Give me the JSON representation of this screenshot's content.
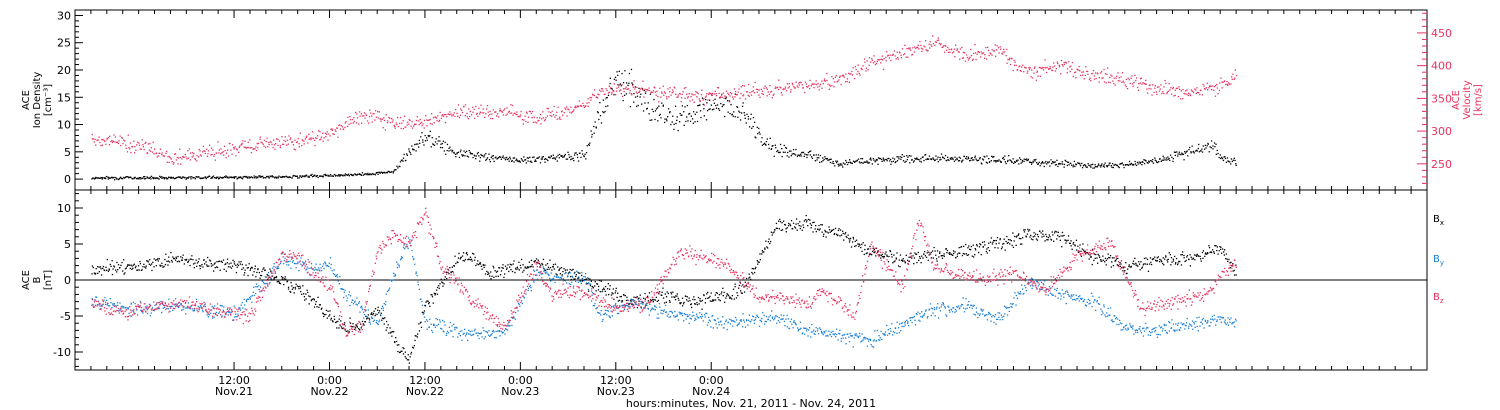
{
  "colors": {
    "density": "#000000",
    "velocity": "#e8325f",
    "bx": "#000000",
    "by": "#1a7fd6",
    "bz": "#e8325f",
    "axis": "#000000"
  },
  "chart_data": [
    {
      "type": "scatter",
      "panel": "top",
      "ylabel_lines": [
        "ACE",
        "Ion Density",
        "[cm⁻³]"
      ],
      "ylim": [
        -2,
        31
      ],
      "yticks": [
        0,
        5,
        10,
        15,
        20,
        25,
        30
      ],
      "y2label_lines": [
        "ACE",
        "Velocity",
        "[km/s]"
      ],
      "y2lim": [
        210,
        485
      ],
      "y2ticks": [
        250,
        300,
        350,
        400,
        450
      ],
      "series": [
        {
          "axis": "left",
          "color_key": "density",
          "x": [
            -6,
            6,
            18,
            24,
            28,
            30,
            32,
            34,
            36,
            40,
            44,
            48,
            52,
            56,
            57,
            58,
            60,
            62,
            63,
            64,
            66,
            68,
            70,
            72,
            74,
            76,
            78,
            80,
            84,
            88,
            92,
            96,
            100,
            104,
            108,
            110,
            112,
            116,
            120,
            124,
            128,
            132,
            135,
            136,
            138
          ],
          "y": [
            0.3,
            0.4,
            0.5,
            0.8,
            1.0,
            1.2,
            1.5,
            5.0,
            8.0,
            5.0,
            4.0,
            3.5,
            4.0,
            4.5,
            8.0,
            13.0,
            18.0,
            16.0,
            15.0,
            14.0,
            12.0,
            11.0,
            12.0,
            14.0,
            13.0,
            12.0,
            8.0,
            5.5,
            4.5,
            3.0,
            3.5,
            3.8,
            4.0,
            3.8,
            3.6,
            3.5,
            3.4,
            3.0,
            2.5,
            2.8,
            3.5,
            5.0,
            6.5,
            4.0,
            3.0
          ]
        },
        {
          "axis": "right",
          "color_key": "velocity",
          "x": [
            -6,
            0,
            4,
            10,
            16,
            20,
            24,
            26,
            28,
            30,
            34,
            40,
            46,
            50,
            56,
            58,
            62,
            70,
            76,
            80,
            84,
            88,
            92,
            96,
            100,
            102,
            104,
            108,
            112,
            116,
            120,
            124,
            128,
            132,
            136,
            138
          ],
          "y": [
            290,
            280,
            260,
            270,
            280,
            285,
            295,
            310,
            325,
            320,
            310,
            330,
            330,
            320,
            340,
            360,
            365,
            355,
            360,
            365,
            370,
            380,
            405,
            420,
            440,
            425,
            415,
            425,
            390,
            400,
            385,
            380,
            365,
            360,
            370,
            385
          ]
        }
      ]
    },
    {
      "type": "scatter",
      "panel": "bottom",
      "ylabel_lines": [
        "ACE",
        "B",
        "[nT]"
      ],
      "ylim": [
        -12.5,
        12.5
      ],
      "yticks": [
        -10,
        -5,
        0,
        5,
        10
      ],
      "legend": [
        "Bx",
        "By",
        "Bz"
      ],
      "legend_position": "right",
      "series": [
        {
          "name": "Bx",
          "color_key": "bx",
          "x": [
            -6,
            0,
            4,
            8,
            12,
            16,
            20,
            22,
            24,
            26,
            28,
            30,
            32,
            34,
            36,
            40,
            42,
            44,
            48,
            50,
            54,
            58,
            62,
            66,
            70,
            74,
            76,
            78,
            80,
            84,
            86,
            88,
            92,
            96,
            100,
            104,
            108,
            112,
            116,
            120,
            124,
            128,
            132,
            136,
            138
          ],
          "y": [
            1.5,
            2.0,
            3.0,
            2.5,
            2.0,
            1.0,
            -1.0,
            -3.0,
            -5.0,
            -6.5,
            -6.0,
            -4.0,
            -8.0,
            -11.0,
            -4.0,
            3.0,
            3.5,
            1.0,
            2.0,
            2.5,
            1.0,
            -1.0,
            -3.0,
            -2.0,
            -3.0,
            -2.0,
            -1.0,
            3.0,
            7.5,
            8.0,
            7.0,
            6.5,
            4.0,
            3.0,
            3.5,
            4.0,
            5.0,
            6.5,
            6.0,
            3.5,
            2.0,
            2.5,
            3.0,
            4.5,
            1.0
          ]
        },
        {
          "name": "By",
          "color_key": "by",
          "x": [
            -6,
            0,
            4,
            8,
            12,
            16,
            18,
            22,
            24,
            26,
            30,
            32,
            34,
            36,
            38,
            42,
            46,
            50,
            54,
            56,
            58,
            62,
            66,
            70,
            74,
            78,
            80,
            84,
            88,
            92,
            96,
            100,
            104,
            108,
            112,
            116,
            120,
            124,
            128,
            132,
            136,
            138
          ],
          "y": [
            -3.0,
            -4.0,
            -3.5,
            -4.0,
            -4.5,
            0.0,
            3.0,
            1.5,
            2.5,
            -2.0,
            -6.0,
            1.0,
            6.0,
            -6.0,
            -6.5,
            -7.5,
            -7.0,
            1.0,
            0.0,
            0.5,
            -5.0,
            -3.0,
            -4.5,
            -5.0,
            -6.0,
            -5.5,
            -5.0,
            -7.0,
            -7.5,
            -8.5,
            -6.0,
            -4.0,
            -3.5,
            -5.5,
            0.0,
            -2.0,
            -3.0,
            -6.5,
            -7.0,
            -6.0,
            -5.5,
            -6.0
          ]
        },
        {
          "name": "Bz",
          "color_key": "bz",
          "x": [
            -6,
            -2,
            2,
            6,
            10,
            14,
            18,
            20,
            24,
            26,
            28,
            30,
            32,
            34,
            36,
            38,
            42,
            46,
            50,
            52,
            56,
            60,
            64,
            68,
            72,
            74,
            78,
            80,
            84,
            86,
            88,
            90,
            92,
            96,
            98,
            100,
            102,
            106,
            110,
            114,
            118,
            122,
            126,
            130,
            134,
            138
          ],
          "y": [
            -3.0,
            -4.5,
            -3.5,
            -3.0,
            -4.5,
            -5.0,
            3.5,
            3.0,
            -1.0,
            -7.0,
            -6.0,
            4.0,
            6.5,
            5.0,
            9.5,
            2.0,
            -3.0,
            -6.5,
            2.0,
            -2.0,
            -1.5,
            -4.0,
            -3.0,
            4.0,
            3.0,
            2.0,
            -2.5,
            -2.0,
            -3.5,
            -1.5,
            -3.0,
            -5.0,
            5.0,
            -1.0,
            8.5,
            2.0,
            1.0,
            0.0,
            1.0,
            -1.5,
            3.5,
            5.5,
            -4.0,
            -3.0,
            -2.0,
            2.5
          ]
        }
      ],
      "legend_labels": [
        {
          "base": "B",
          "sub": "x"
        },
        {
          "base": "B",
          "sub": "y"
        },
        {
          "base": "B",
          "sub": "z"
        }
      ]
    }
  ],
  "x_axis": {
    "range_hours": [
      -8,
      162
    ],
    "major_ticks": [
      {
        "hour": 12,
        "time": "12:00",
        "date": "Nov.21"
      },
      {
        "hour": 24,
        "time": "0:00",
        "date": "Nov.22"
      },
      {
        "hour": 36,
        "time": "12:00",
        "date": "Nov.22"
      },
      {
        "hour": 48,
        "time": "0:00",
        "date": "Nov.23"
      },
      {
        "hour": 60,
        "time": "12:00",
        "date": "Nov.23"
      },
      {
        "hour": 72,
        "time": "0:00",
        "date": "Nov.24"
      }
    ],
    "title": "hours:minutes, Nov. 21, 2011 - Nov. 24, 2011"
  }
}
